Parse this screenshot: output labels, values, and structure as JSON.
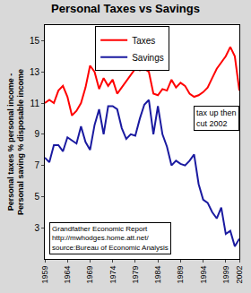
{
  "chart_data": {
    "type": "line",
    "title": "Personal Taxes vs Savings",
    "ylabel": [
      "Personal taxes % personal income -",
      "Personal saving % disposable income"
    ],
    "x": [
      1959,
      1960,
      1961,
      1962,
      1963,
      1964,
      1965,
      1966,
      1967,
      1968,
      1969,
      1970,
      1971,
      1972,
      1973,
      1974,
      1975,
      1976,
      1977,
      1978,
      1979,
      1980,
      1981,
      1982,
      1983,
      1984,
      1985,
      1986,
      1987,
      1988,
      1989,
      1990,
      1991,
      1992,
      1993,
      1994,
      1995,
      1996,
      1997,
      1998,
      1999,
      2000,
      2001,
      2002
    ],
    "series": [
      {
        "name": "Taxes",
        "color": "#ff0000",
        "values": [
          11.0,
          11.2,
          11.0,
          11.8,
          12.1,
          11.4,
          10.2,
          10.5,
          11.0,
          12.0,
          13.4,
          13.0,
          11.9,
          12.6,
          12.1,
          12.5,
          11.6,
          12.0,
          12.4,
          12.8,
          13.2,
          13.1,
          13.2,
          13.0,
          11.6,
          11.5,
          11.9,
          11.8,
          12.5,
          12.0,
          12.3,
          12.1,
          11.6,
          11.4,
          11.5,
          11.7,
          12.0,
          12.6,
          13.2,
          13.6,
          14.0,
          14.6,
          14.0,
          11.8
        ]
      },
      {
        "name": "Savings",
        "color": "#1a1aa0",
        "values": [
          7.5,
          7.2,
          8.3,
          8.3,
          7.9,
          8.8,
          8.6,
          8.4,
          9.5,
          8.5,
          8.0,
          9.6,
          10.6,
          9.0,
          10.8,
          10.8,
          10.6,
          9.4,
          8.7,
          9.0,
          8.9,
          10.0,
          10.9,
          11.2,
          9.0,
          10.8,
          9.0,
          8.2,
          7.0,
          7.3,
          7.1,
          7.0,
          7.3,
          7.7,
          5.8,
          4.8,
          4.6,
          4.0,
          3.6,
          4.3,
          2.6,
          2.8,
          1.8,
          2.3
        ]
      }
    ],
    "xlim": [
      1959,
      2002
    ],
    "xticks": [
      1959,
      1964,
      1969,
      1974,
      1979,
      1984,
      1989,
      1994,
      1999,
      2002
    ],
    "ylim": [
      1,
      16
    ],
    "yticks": [
      3,
      5,
      7,
      9,
      11,
      13,
      15
    ],
    "grid": false,
    "legend": "top",
    "annotations": [
      {
        "lines": [
          "tax up then",
          "cut 2002"
        ],
        "x": 2002,
        "y": 10.8
      },
      {
        "lines": [
          "Grandfather Economic Report",
          "http://mwhodges.home.att.net/",
          "source:Bureau of Economic Analysis"
        ],
        "x": 1960,
        "y": 1.3
      }
    ]
  }
}
